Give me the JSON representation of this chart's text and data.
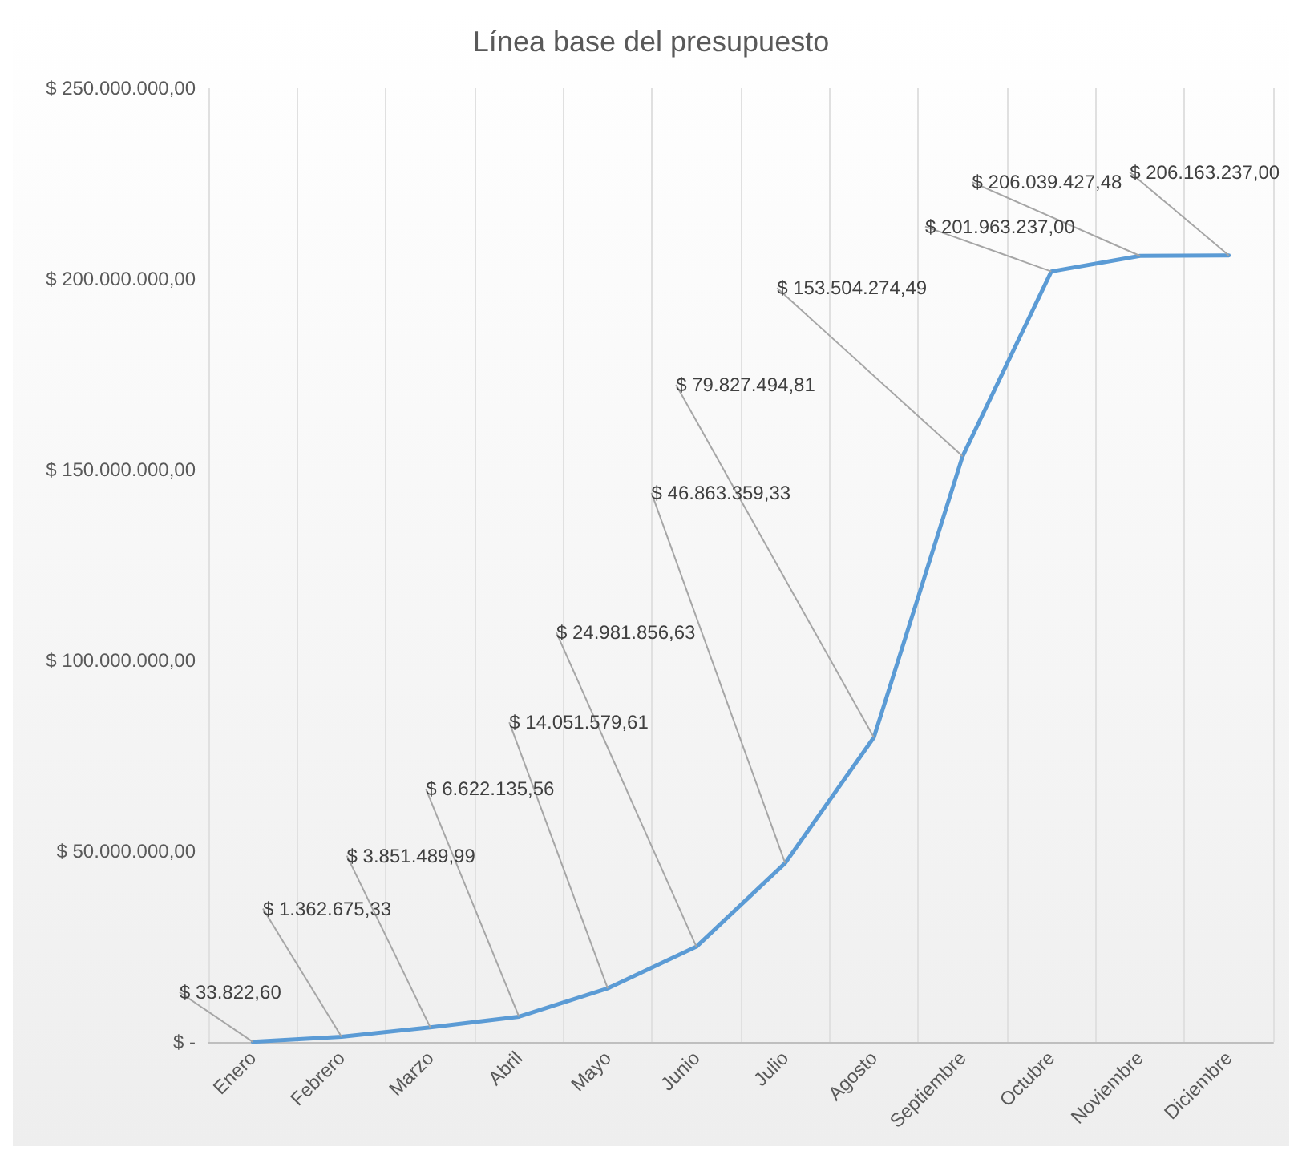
{
  "chart_data": {
    "type": "line",
    "title": "Línea base del presupuesto",
    "categories": [
      "Enero",
      "Febrero",
      "Marzo",
      "Abril",
      "Mayo",
      "Junio",
      "Julio",
      "Agosto",
      "Septiembre",
      "Octubre",
      "Noviembre",
      "Diciembre"
    ],
    "series": [
      {
        "color": "#5b9bd5",
        "values": [
          33822.6,
          1362675.33,
          3851489.99,
          6622135.56,
          14051579.61,
          24981856.63,
          46863359.33,
          79827494.81,
          153504274.49,
          201963237.0,
          206039427.48,
          206163237.0
        ],
        "value_labels": [
          "$ 33.822,60",
          "$ 1.362.675,33",
          "$ 3.851.489,99",
          "$ 6.622.135,56",
          "$ 14.051.579,61",
          "$ 24.981.856,63",
          "$ 46.863.359,33",
          "$ 79.827.494,81",
          "$ 153.504.274,49",
          "$ 201.963.237,00",
          "$ 206.039.427,48",
          "$ 206.163.237,00"
        ]
      }
    ],
    "ylim": [
      0,
      250000000
    ],
    "yticks": [
      {
        "value": 0,
        "label": "$ -"
      },
      {
        "value": 50000000,
        "label": "$ 50.000.000,00"
      },
      {
        "value": 100000000,
        "label": "$ 100.000.000,00"
      },
      {
        "value": 150000000,
        "label": "$ 150.000.000,00"
      },
      {
        "value": 200000000,
        "label": "$ 200.000.000,00"
      },
      {
        "value": 250000000,
        "label": "$ 250.000.000,00"
      }
    ],
    "grid": "x",
    "marker": "none",
    "line_style": "solid"
  }
}
